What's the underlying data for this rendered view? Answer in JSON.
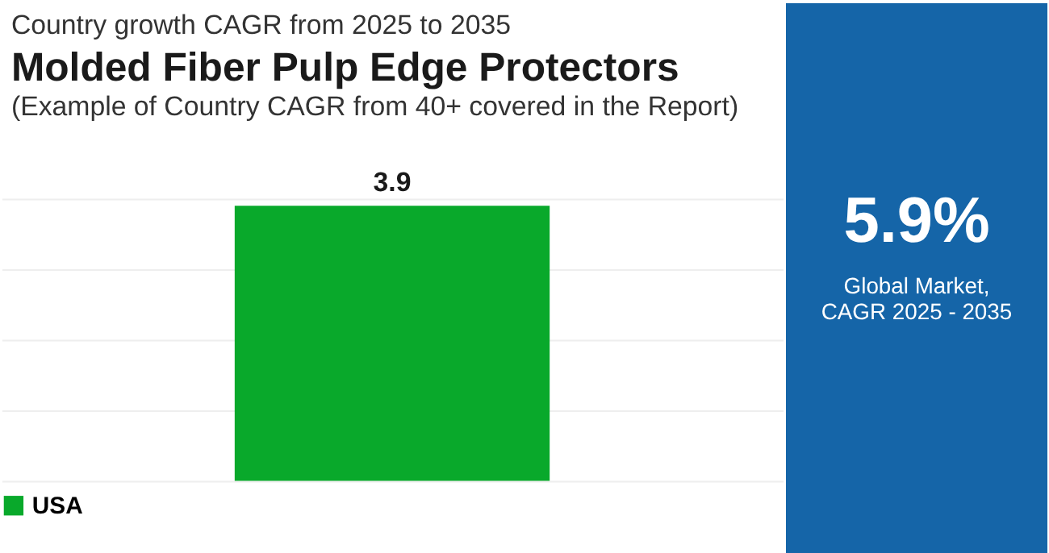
{
  "chart_data": [
    {
      "type": "bar",
      "title": "Molded Fiber Pulp Edge Protectors",
      "subtitle": "Country growth CAGR from 2025 to 2035",
      "annotations": [
        "(Example of Country CAGR from 40+ covered in the Report)"
      ],
      "categories": [
        null
      ],
      "series": [
        {
          "name": "USA",
          "color": "#09a92b",
          "values": [
            3.9
          ]
        }
      ],
      "ylim": [
        0,
        4
      ],
      "yticks": [
        {
          "value": 0,
          "label": null
        },
        {
          "value": 1,
          "label": null
        },
        {
          "value": 2,
          "label": null
        },
        {
          "value": 3,
          "label": null
        },
        {
          "value": 4,
          "label": null
        }
      ],
      "tick_labels": false,
      "grid": "y",
      "legend": "bottom",
      "data_labels": true
    },
    {
      "type": "other",
      "title": "5.9%",
      "subtitle": "Global Market,\nCAGR 2025 - 2035"
    }
  ]
}
